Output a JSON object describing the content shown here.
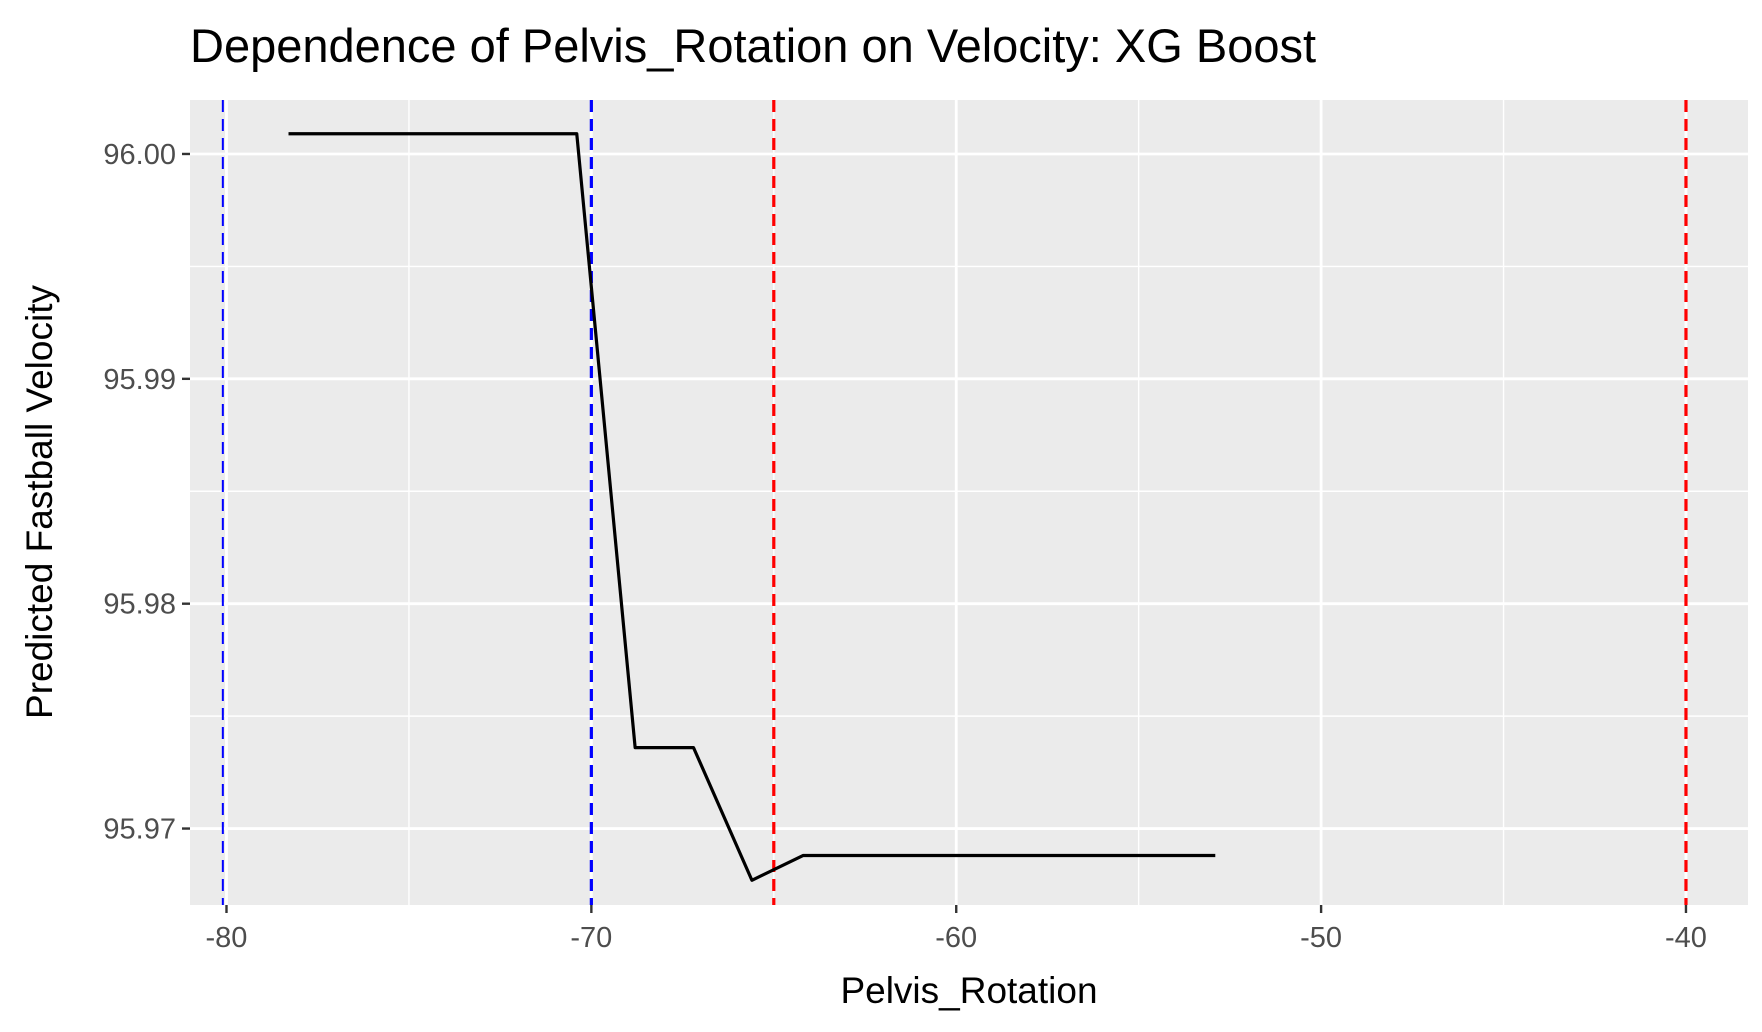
{
  "chart_data": {
    "type": "line",
    "title": "Dependence of Pelvis_Rotation on Velocity: XG Boost",
    "xlabel": "Pelvis_Rotation",
    "ylabel": "Predicted Fastball Velocity",
    "xlim": [
      -81.0,
      -38.3
    ],
    "ylim": [
      95.9666,
      96.0024
    ],
    "x_ticks": [
      -80,
      -70,
      -60,
      -50,
      -40
    ],
    "x_tick_labels": [
      "-80",
      "-70",
      "-60",
      "-50",
      "-40"
    ],
    "y_ticks": [
      95.97,
      95.98,
      95.99,
      96.0
    ],
    "y_tick_labels": [
      "95.97",
      "95.98",
      "95.99",
      "96.00"
    ],
    "grid": true,
    "series": [
      {
        "color": "#000000",
        "x": [
          -78.3,
          -70.4,
          -68.8,
          -67.2,
          -65.6,
          -64.2,
          -52.9
        ],
        "y": [
          96.0009,
          96.0009,
          95.9736,
          95.9736,
          95.9677,
          95.9688,
          95.9688
        ]
      }
    ],
    "vlines": [
      {
        "x": -80.1,
        "color": "#0000ff"
      },
      {
        "x": -70.0,
        "color": "#0000ff"
      },
      {
        "x": -65.0,
        "color": "#ff0000"
      },
      {
        "x": -40.0,
        "color": "#ff0000"
      }
    ]
  }
}
